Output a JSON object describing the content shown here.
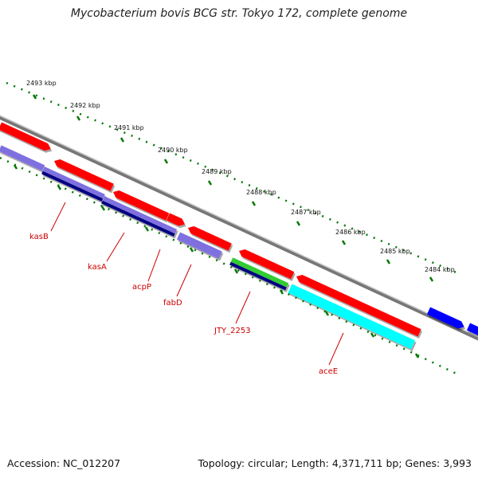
{
  "title": "Mycobacterium bovis BCG str. Tokyo 172, complete genome",
  "footer": {
    "accession": "Accession: NC_012207",
    "topology": "Topology: circular; Length: 4,371,711 bp; Genes: 3,993"
  },
  "colors": {
    "forward_cds": "#ff0000",
    "reverse_cds": "#7f6fe0",
    "reverse_cds_dark": "#000080",
    "green_feature": "#33cc33",
    "cyan_feature": "#00ffff",
    "blue_feature": "#0000ff",
    "backbone": "#888888",
    "ticks": "#007700",
    "label_text": "#cc0000"
  },
  "kbp_labels": [
    "2493 kbp",
    "2492 kbp",
    "2491 kbp",
    "2490 kbp",
    "2489 kbp",
    "2488 kbp",
    "2487 kbp",
    "2486 kbp",
    "2485 kbp",
    "2484 kbp"
  ],
  "gene_labels": [
    "kasB",
    "kasA",
    "acpP",
    "fabD",
    "JTY_2253",
    "aceE"
  ]
}
